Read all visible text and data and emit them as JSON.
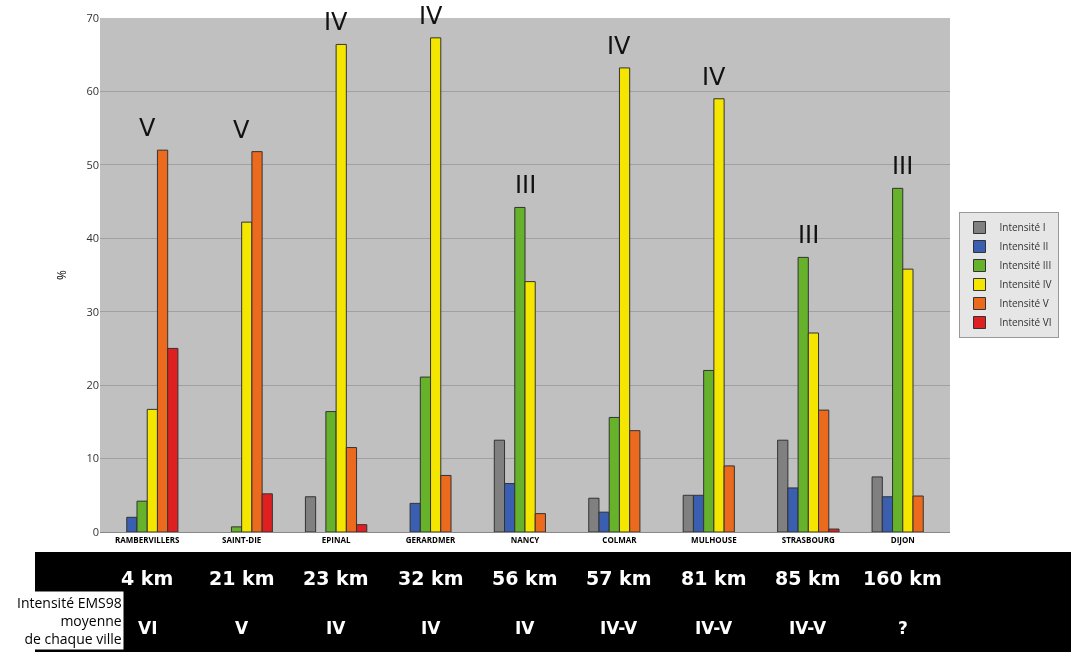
{
  "chart_data": {
    "type": "bar",
    "ylabel": "%",
    "categories": [
      "RAMBERVILLERS",
      "SAINT-DIE",
      "EPINAL",
      "GERARDMER",
      "NANCY",
      "COLMAR",
      "MULHOUSE",
      "STRASBOURG",
      "DIJON"
    ],
    "series": [
      {
        "name": "Intensité I",
        "color": "#808080",
        "values": [
          null,
          null,
          4.8,
          null,
          12.5,
          4.6,
          5,
          12.5,
          7.5
        ]
      },
      {
        "name": "Intensité II",
        "color": "#3a5fb0",
        "values": [
          2,
          null,
          null,
          3.9,
          6.6,
          2.7,
          5,
          6,
          4.8
        ]
      },
      {
        "name": "Intensité III",
        "color": "#66b22a",
        "values": [
          4.2,
          0.7,
          16.4,
          21.1,
          44.2,
          15.6,
          22,
          37.4,
          46.8
        ]
      },
      {
        "name": "Intensité IV",
        "color": "#f5e600",
        "values": [
          16.7,
          42.2,
          66.4,
          67.3,
          34.1,
          63.2,
          59,
          27.1,
          35.8
        ]
      },
      {
        "name": "Intensité V",
        "color": "#ec6a1e",
        "values": [
          52,
          51.8,
          11.5,
          7.7,
          2.5,
          13.8,
          9,
          16.6,
          4.9
        ]
      },
      {
        "name": "Intensité VI",
        "color": "#e02020",
        "values": [
          25,
          5.2,
          1,
          null,
          null,
          null,
          null,
          0.4,
          null
        ]
      }
    ],
    "ylim": [
      0,
      70
    ],
    "yticks": [
      0,
      10,
      20,
      30,
      40,
      50,
      60,
      70
    ],
    "grid": "y",
    "legend": "right",
    "annotations": [
      "V",
      "V",
      "IV",
      "IV",
      "III",
      "IV",
      "IV",
      "III",
      "III",
      "4 km",
      "21 km",
      "23 km",
      "32 km",
      "56 km",
      "57 km",
      "81 km",
      "85 km",
      "160 km",
      "VI",
      "V",
      "IV",
      "IV",
      "IV",
      "IV-V",
      "IV-V",
      "IV-V",
      "?",
      "Intensité EMS98\nmoyenne\nde chaque ville"
    ]
  }
}
